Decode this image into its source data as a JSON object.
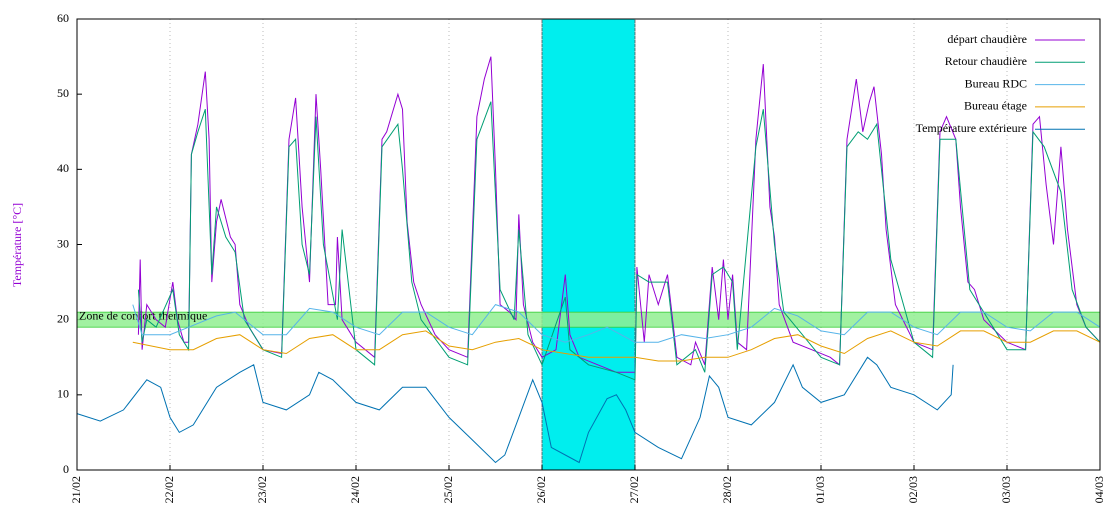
{
  "chart_data": {
    "type": "line",
    "ylabel": "Température [°C]",
    "ylabel_color": "#9400d3",
    "xlim": [
      0,
      11
    ],
    "ylim": [
      0,
      60
    ],
    "yticks": [
      0,
      10,
      20,
      30,
      40,
      50,
      60
    ],
    "xticks": [
      {
        "value": 0,
        "label": "21/02"
      },
      {
        "value": 1,
        "label": "22/02"
      },
      {
        "value": 2,
        "label": "23/02"
      },
      {
        "value": 3,
        "label": "24/02"
      },
      {
        "value": 4,
        "label": "25/02"
      },
      {
        "value": 5,
        "label": "26/02"
      },
      {
        "value": 6,
        "label": "27/02"
      },
      {
        "value": 7,
        "label": "28/02"
      },
      {
        "value": 8,
        "label": "01/03"
      },
      {
        "value": 9,
        "label": "02/03"
      },
      {
        "value": 10,
        "label": "03/03"
      },
      {
        "value": 11,
        "label": "04/03"
      }
    ],
    "grid": "x",
    "legend": "top-right",
    "highlight": {
      "range": [
        5,
        6
      ],
      "color": "#00eeee"
    },
    "comfort_zone": {
      "range": [
        19,
        21
      ],
      "label": "Zone de confort thermique",
      "color": "#90ee90"
    },
    "series": [
      {
        "name": "départ chaudière",
        "color": "#9400d3",
        "x": [
          0.66,
          0.68,
          0.7,
          0.75,
          0.85,
          0.95,
          1.03,
          1.08,
          1.15,
          1.2,
          1.23,
          1.3,
          1.38,
          1.42,
          1.45,
          1.5,
          1.55,
          1.65,
          1.7,
          1.75,
          1.85,
          2.0,
          2.2,
          2.28,
          2.35,
          2.42,
          2.5,
          2.57,
          2.62,
          2.7,
          2.78,
          2.8,
          2.85,
          3.0,
          3.2,
          3.28,
          3.33,
          3.45,
          3.5,
          3.55,
          3.62,
          3.7,
          3.85,
          4.0,
          4.2,
          4.3,
          4.38,
          4.45,
          4.5,
          4.55,
          4.65,
          4.72,
          4.75,
          4.8,
          4.9,
          5.0,
          5.15,
          5.25,
          5.3,
          5.4,
          5.6,
          5.8,
          6.0,
          6.02,
          6.1,
          6.15,
          6.25,
          6.35,
          6.45,
          6.6,
          6.65,
          6.75,
          6.83,
          6.9,
          6.95,
          7.0,
          7.05,
          7.1,
          7.2,
          7.3,
          7.38,
          7.45,
          7.5,
          7.55,
          7.7,
          7.9,
          8.1,
          8.2,
          8.28,
          8.38,
          8.45,
          8.52,
          8.57,
          8.65,
          8.7,
          8.8,
          9.0,
          9.2,
          9.28,
          9.35,
          9.45,
          9.5,
          9.58,
          9.65,
          9.75,
          10.0,
          10.2,
          10.28,
          10.35,
          10.42,
          10.5,
          10.58,
          10.65,
          10.75,
          10.85,
          11.0
        ],
        "values": [
          18,
          28,
          16,
          22,
          20,
          19,
          25,
          20,
          17,
          17,
          42,
          46,
          53,
          44,
          25,
          33,
          36,
          31,
          30,
          22,
          19,
          16,
          15.5,
          44,
          49.5,
          35,
          25,
          50,
          40,
          22,
          22,
          31,
          20,
          17,
          15,
          44,
          45,
          50,
          48,
          33,
          25,
          22,
          18,
          16,
          15,
          47,
          52,
          55,
          40,
          22,
          21,
          20,
          34,
          22,
          17,
          15,
          16,
          26,
          18,
          15,
          14,
          13,
          13,
          27,
          17,
          26,
          22,
          26,
          15,
          14,
          17,
          14,
          27,
          20,
          28,
          20,
          26,
          17,
          16,
          44,
          54,
          35,
          31,
          22,
          17,
          16,
          15,
          14,
          44,
          52,
          45,
          49,
          51,
          42,
          32,
          22,
          17,
          16,
          45,
          47,
          44,
          35,
          25,
          24,
          20,
          17,
          16,
          46,
          47,
          38,
          30,
          43,
          32,
          22,
          19,
          17
        ]
      },
      {
        "name": "Retour chaudière",
        "color": "#009e73",
        "x": [
          0.66,
          0.7,
          0.75,
          0.85,
          1.03,
          1.1,
          1.2,
          1.23,
          1.3,
          1.38,
          1.45,
          1.5,
          1.6,
          1.7,
          1.8,
          2.0,
          2.2,
          2.28,
          2.35,
          2.42,
          2.5,
          2.57,
          2.65,
          2.8,
          2.85,
          3.0,
          3.2,
          3.28,
          3.45,
          3.5,
          3.6,
          3.7,
          4.0,
          4.2,
          4.3,
          4.45,
          4.55,
          4.7,
          4.75,
          4.85,
          5.0,
          5.25,
          5.3,
          5.5,
          5.8,
          6.0,
          6.02,
          6.15,
          6.35,
          6.45,
          6.65,
          6.75,
          6.83,
          6.95,
          7.05,
          7.1,
          7.3,
          7.38,
          7.5,
          7.6,
          8.0,
          8.2,
          8.28,
          8.4,
          8.5,
          8.6,
          8.75,
          9.0,
          9.2,
          9.28,
          9.45,
          9.6,
          9.8,
          10.0,
          10.2,
          10.28,
          10.4,
          10.58,
          10.7,
          10.85,
          11.0
        ],
        "values": [
          24,
          17,
          20,
          19,
          24,
          18,
          16,
          42,
          45,
          48,
          26,
          35,
          31,
          29,
          20,
          16,
          15,
          43,
          44,
          30,
          26,
          47,
          30,
          20,
          32,
          16,
          14,
          43,
          46,
          40,
          25,
          20,
          15,
          14,
          44,
          49,
          24,
          20,
          32,
          18,
          14,
          23,
          16,
          14,
          13,
          12,
          26,
          25,
          25,
          14,
          16,
          13,
          26,
          27,
          25,
          16,
          43,
          48,
          30,
          21,
          15,
          14,
          43,
          45,
          44,
          46,
          28,
          17,
          15,
          44,
          44,
          24,
          20,
          16,
          16,
          45,
          43,
          37,
          24,
          19,
          17
        ]
      },
      {
        "name": "Bureau RDC",
        "color": "#56b4e9",
        "x": [
          0.6,
          0.7,
          1.0,
          1.2,
          1.5,
          1.7,
          2.0,
          2.25,
          2.5,
          2.75,
          3.0,
          3.25,
          3.5,
          3.75,
          4.0,
          4.25,
          4.5,
          4.75,
          5.0,
          5.25,
          5.5,
          5.7,
          6.0,
          6.25,
          6.5,
          6.75,
          7.0,
          7.25,
          7.5,
          7.75,
          8.0,
          8.25,
          8.5,
          8.75,
          9.0,
          9.25,
          9.5,
          9.75,
          10.0,
          10.25,
          10.5,
          10.75,
          11.0
        ],
        "values": [
          22,
          18,
          18,
          19,
          20.5,
          21,
          18,
          18,
          21.5,
          21,
          19,
          18,
          21,
          21,
          19,
          18,
          22,
          21,
          18,
          17,
          18,
          19,
          17,
          17,
          18,
          17.5,
          18,
          19,
          21.5,
          20.5,
          18.5,
          18,
          21,
          21,
          19,
          18,
          21,
          21,
          19,
          18.5,
          21,
          21,
          19
        ]
      },
      {
        "name": "Bureau étage",
        "color": "#e69f00",
        "x": [
          0.6,
          1.0,
          1.25,
          1.5,
          1.75,
          2.0,
          2.25,
          2.5,
          2.75,
          3.0,
          3.25,
          3.5,
          3.75,
          4.0,
          4.25,
          4.5,
          4.75,
          5.0,
          5.25,
          5.5,
          5.75,
          6.0,
          6.25,
          6.5,
          6.75,
          7.0,
          7.25,
          7.5,
          7.75,
          8.0,
          8.25,
          8.5,
          8.75,
          9.0,
          9.25,
          9.5,
          9.75,
          10.0,
          10.25,
          10.5,
          10.75,
          11.0
        ],
        "values": [
          17,
          16,
          16,
          17.5,
          18,
          16,
          15.5,
          17.5,
          18,
          16,
          16,
          18,
          18.5,
          16.5,
          16,
          17,
          17.5,
          16,
          15.5,
          15,
          15,
          15,
          14.5,
          14.5,
          15,
          15,
          16,
          17.5,
          18,
          16.5,
          15.5,
          17.5,
          18.5,
          17,
          16.5,
          18.5,
          18.5,
          17,
          17,
          18.5,
          18.5,
          17
        ]
      },
      {
        "name": "Température extérieure",
        "color": "#0072b2",
        "x": [
          0,
          0.25,
          0.5,
          0.75,
          0.9,
          1.0,
          1.1,
          1.25,
          1.5,
          1.75,
          1.9,
          2.0,
          2.25,
          2.5,
          2.6,
          2.75,
          3.0,
          3.25,
          3.5,
          3.75,
          4.0,
          4.25,
          4.5,
          4.6,
          4.75,
          4.9,
          5.0,
          5.1,
          5.25,
          5.4,
          5.5,
          5.7,
          5.8,
          5.9,
          6.0,
          6.25,
          6.5,
          6.7,
          6.8,
          6.9,
          7.0,
          7.25,
          7.5,
          7.7,
          7.8,
          8.0,
          8.25,
          8.5,
          8.6,
          8.75,
          9.0,
          9.25,
          9.4,
          9.42
        ],
        "values": [
          7.5,
          6.5,
          8,
          12,
          11,
          7,
          5,
          6,
          11,
          13,
          14,
          9,
          8,
          10,
          13,
          12,
          9,
          8,
          11,
          11,
          7,
          4,
          1,
          2,
          7,
          12,
          9,
          3,
          2,
          1,
          5,
          9.5,
          10,
          8,
          5,
          3,
          1.5,
          7,
          12.5,
          11,
          7,
          6,
          9,
          14,
          11,
          9,
          10,
          15,
          14,
          11,
          10,
          8,
          10,
          14
        ]
      }
    ]
  }
}
